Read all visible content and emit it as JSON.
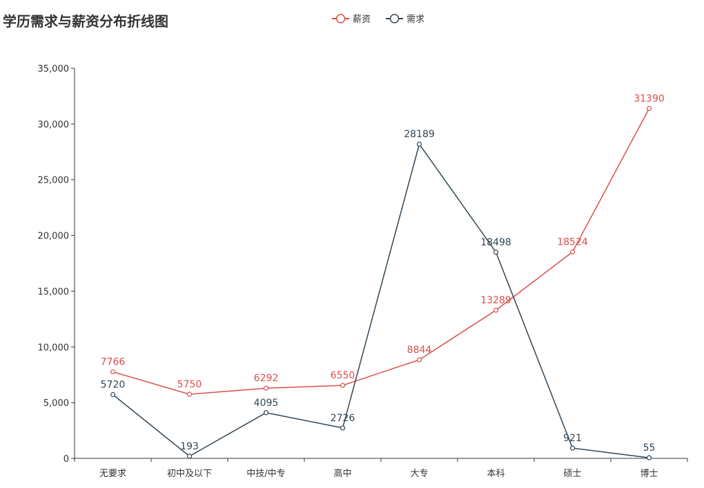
{
  "chart_data": {
    "type": "line",
    "title": "学历需求与薪资分布折线图",
    "categories": [
      "无要求",
      "初中及以下",
      "中技/中专",
      "高中",
      "大专",
      "本科",
      "硕士",
      "博士"
    ],
    "series": [
      {
        "name": "薪资",
        "color": "#d94e4a",
        "values": [
          7766,
          5750,
          6292,
          6550,
          8844,
          13289,
          18524,
          31390
        ]
      },
      {
        "name": "需求",
        "color": "#2f4554",
        "values": [
          5720,
          193,
          4095,
          2726,
          28189,
          18498,
          921,
          55
        ]
      }
    ],
    "ylim": [
      0,
      35000
    ],
    "yticks": [
      "0",
      "5,000",
      "10,000",
      "15,000",
      "20,000",
      "25,000",
      "30,000",
      "35,000"
    ],
    "xlabel": "",
    "ylabel": "",
    "grid": false,
    "legend": "top-center"
  }
}
